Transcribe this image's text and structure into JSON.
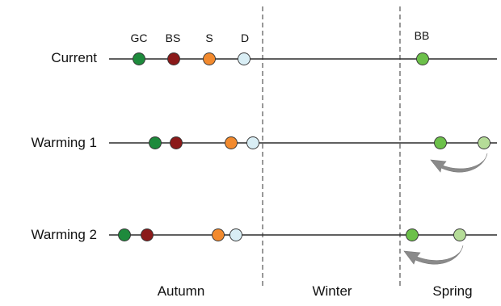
{
  "markers": [
    {
      "id": "gc",
      "label": "GC",
      "color": "#1e8a3c"
    },
    {
      "id": "bs",
      "label": "BS",
      "color": "#8b1a1a"
    },
    {
      "id": "s",
      "label": "S",
      "color": "#f28a2e"
    },
    {
      "id": "d",
      "label": "D",
      "color": "#d9eef5"
    },
    {
      "id": "bb",
      "label": "BB",
      "color": "#6cc04a"
    }
  ],
  "spring_shifted_color": "#b5dc98",
  "rows": [
    {
      "id": "current",
      "label": "Current"
    },
    {
      "id": "warming-1",
      "label": "Warming 1"
    },
    {
      "id": "warming-2",
      "label": "Warming 2"
    }
  ],
  "seasons": [
    {
      "id": "autumn",
      "label": "Autumn"
    },
    {
      "id": "winter",
      "label": "Winter"
    },
    {
      "id": "spring",
      "label": "Spring"
    }
  ]
}
